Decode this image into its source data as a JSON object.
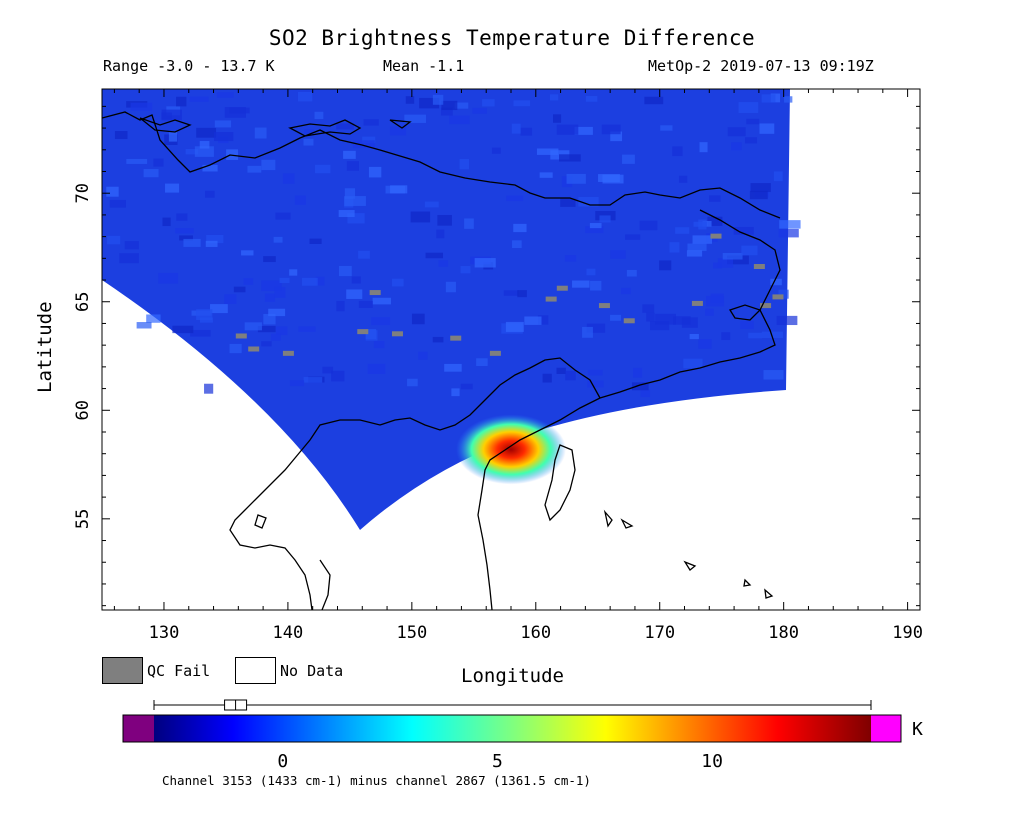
{
  "title": "SO2 Brightness Temperature Difference",
  "range_text": "Range -3.0 - 13.7 K",
  "mean_text": "Mean -1.1",
  "satellite_text": "MetOp-2 2019-07-13 09:19Z",
  "legend": {
    "qc_fail": "QC Fail",
    "no_data": "No Data"
  },
  "colorbar": {
    "units": "K",
    "min": -3.0,
    "max": 13.7,
    "ticks": [
      "0",
      "5",
      "10"
    ],
    "tick_values": [
      0,
      5,
      10
    ],
    "mean_marker": -1.1
  },
  "footnote": "Channel 3153 (1433 cm-1) minus channel 2867 (1361.5 cm-1)",
  "colors": {
    "swath_background": "#1c3fe0",
    "qc_fail": "#7f7f7f",
    "under_range": "#7f007f",
    "over_range": "#ff00ff"
  },
  "chart_data": {
    "type": "heatmap",
    "title": "SO2 Brightness Temperature Difference",
    "xlabel": "Longitude",
    "ylabel": "Latitude",
    "xlim": [
      125,
      191
    ],
    "ylim": [
      50.8,
      74.8
    ],
    "x_ticks": [
      "130",
      "140",
      "150",
      "160",
      "170",
      "180",
      "190"
    ],
    "x_tick_values": [
      130,
      140,
      150,
      160,
      170,
      180,
      190
    ],
    "y_ticks": [
      "55",
      "60",
      "65",
      "70"
    ],
    "y_tick_values": [
      55,
      60,
      65,
      70
    ],
    "hotspot": {
      "lon": 158,
      "lat": 58.2,
      "value": 13.7
    },
    "qc_fail_pixels": [
      [
        136.2,
        63.4
      ],
      [
        137.2,
        62.8
      ],
      [
        140,
        62.6
      ],
      [
        146,
        63.6
      ],
      [
        147,
        65.4
      ],
      [
        148.8,
        63.5
      ],
      [
        153.5,
        63.3
      ],
      [
        156.7,
        62.6
      ],
      [
        161.2,
        65.1
      ],
      [
        162.1,
        65.6
      ],
      [
        165.5,
        64.8
      ],
      [
        167.5,
        64.1
      ],
      [
        173,
        64.9
      ],
      [
        174.5,
        68.0
      ],
      [
        178,
        66.6
      ],
      [
        179.5,
        65.2
      ],
      [
        178.5,
        64.8
      ]
    ]
  }
}
